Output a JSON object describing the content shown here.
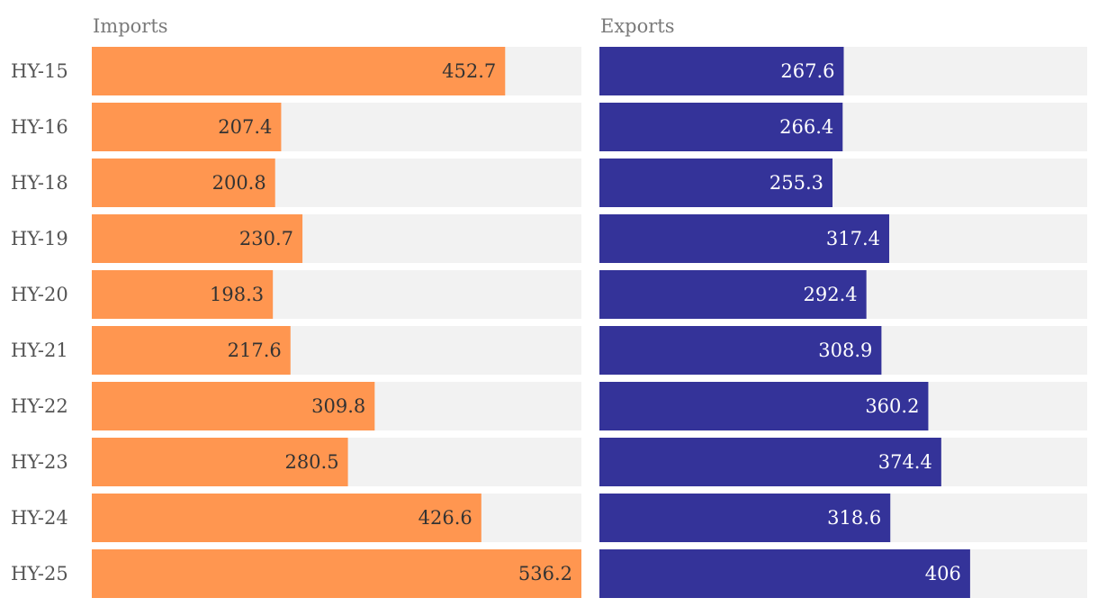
{
  "chart_data": {
    "type": "bar",
    "orientation": "horizontal",
    "layout": "small-multiples",
    "categories": [
      "HY-15",
      "HY-16",
      "HY-18",
      "HY-19",
      "HY-20",
      "HY-21",
      "HY-22",
      "HY-23",
      "HY-24",
      "HY-25"
    ],
    "series": [
      {
        "name": "Imports",
        "color": "#FF9650",
        "label_color": "#333333",
        "values": [
          452.7,
          207.4,
          200.8,
          230.7,
          198.3,
          217.6,
          309.8,
          280.5,
          426.6,
          536.2
        ]
      },
      {
        "name": "Exports",
        "color": "#343399",
        "label_color": "#ffffff",
        "values": [
          267.6,
          266.4,
          255.3,
          317.4,
          292.4,
          308.9,
          360.2,
          374.4,
          318.6,
          406
        ]
      }
    ],
    "xlim": [
      0,
      536.2
    ],
    "background_track_color": "#F2F2F2",
    "grid": false,
    "legend": "none"
  }
}
